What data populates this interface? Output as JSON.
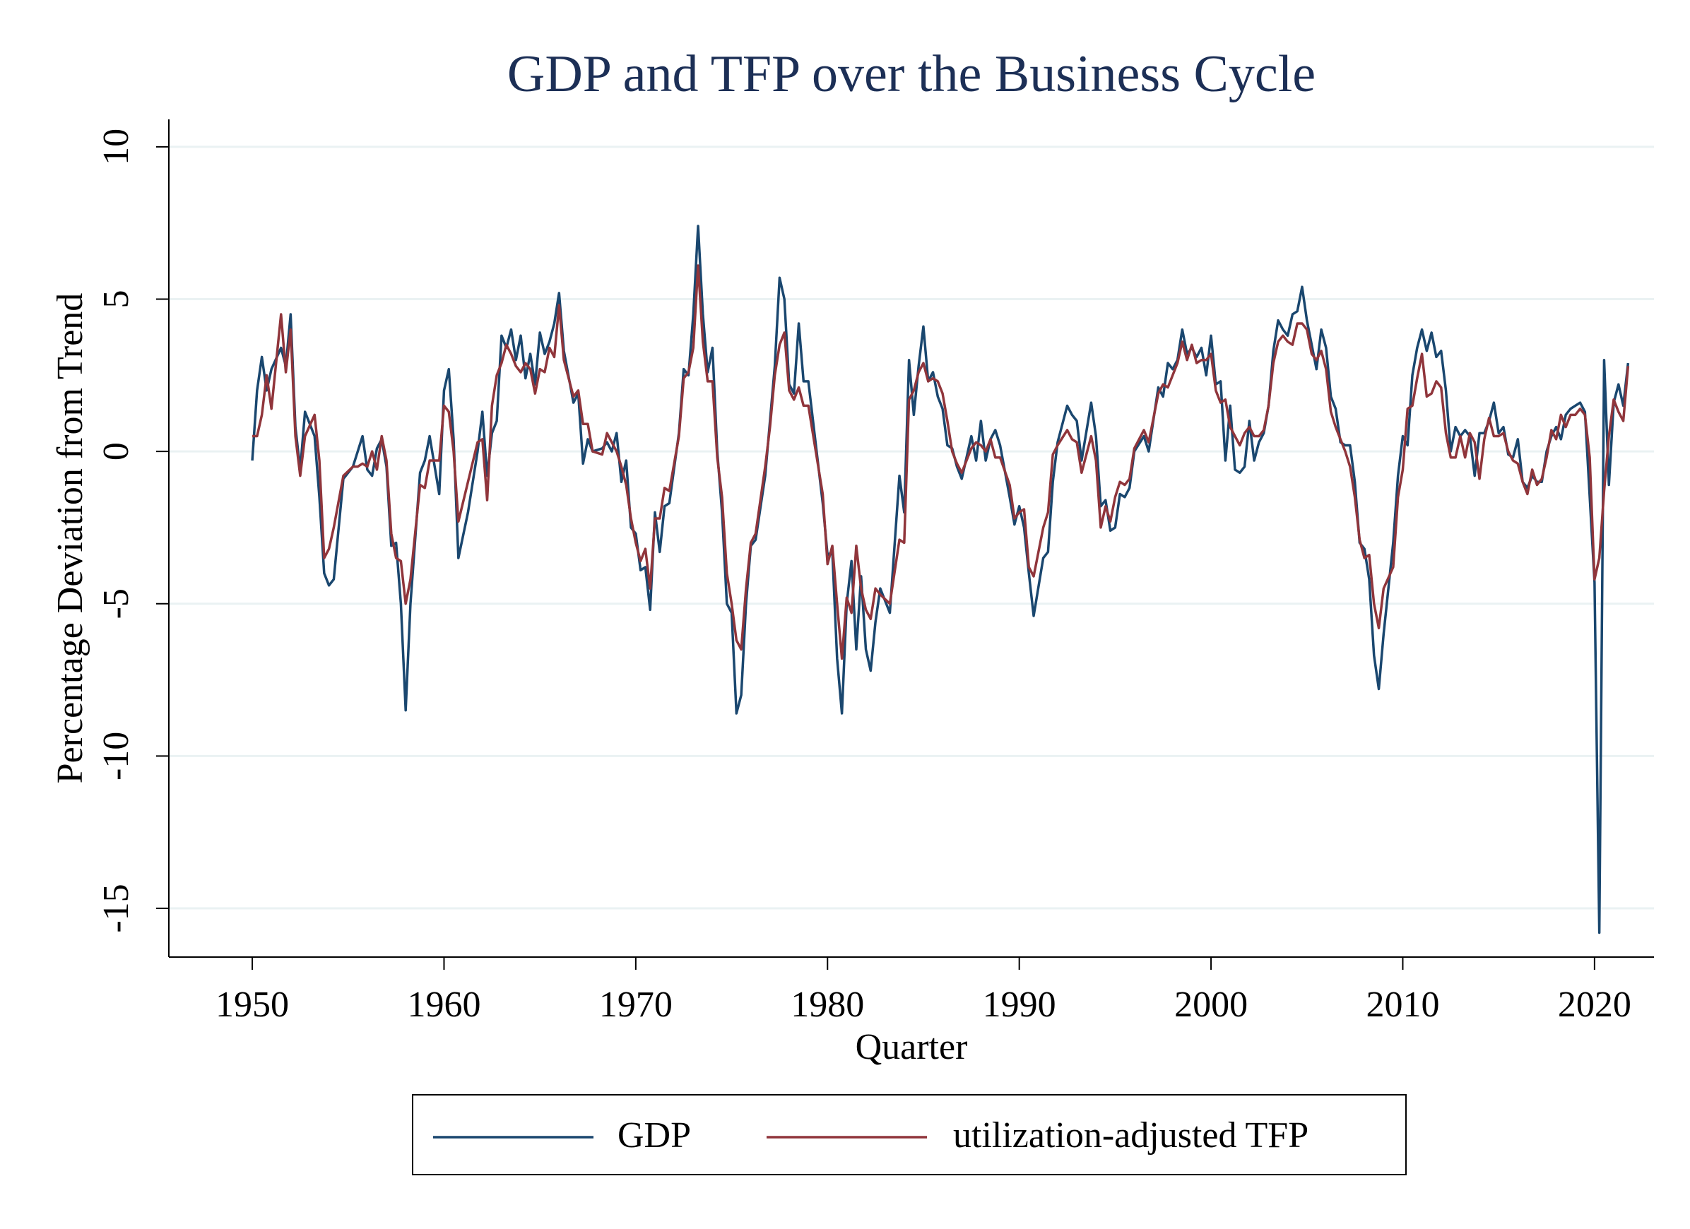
{
  "chart_data": {
    "type": "line",
    "title": "GDP and TFP over the Business Cycle",
    "x_label": "Quarter",
    "y_label": "Percentage Deviation from Trend",
    "xlim": [
      1945.65,
      2023.1
    ],
    "xticks": [
      1950,
      1960,
      1970,
      1980,
      1990,
      2000,
      2010,
      2020
    ],
    "ylim": [
      -16.6,
      10.9
    ],
    "yticks": [
      -15,
      -10,
      -5,
      0,
      5,
      10
    ],
    "grid": true,
    "legend": "bottom",
    "x": [
      1950.0,
      1950.25,
      1950.5,
      1950.75,
      1951.0,
      1951.5,
      1951.75,
      1952.0,
      1952.25,
      1952.5,
      1952.75,
      1953.25,
      1953.5,
      1953.75,
      1954.0,
      1954.25,
      1954.75,
      1955.25,
      1955.5,
      1955.75,
      1956.0,
      1956.25,
      1956.5,
      1956.75,
      1957.0,
      1957.25,
      1957.5,
      1957.75,
      1958.0,
      1958.25,
      1958.75,
      1959.0,
      1959.25,
      1959.75,
      1960.0,
      1960.25,
      1960.5,
      1960.75,
      1961.25,
      1961.75,
      1962.0,
      1962.25,
      1962.5,
      1962.75,
      1963.0,
      1963.25,
      1963.5,
      1963.75,
      1964.0,
      1964.25,
      1964.5,
      1964.75,
      1965.0,
      1965.25,
      1965.5,
      1965.75,
      1966.0,
      1966.25,
      1966.75,
      1967.0,
      1967.25,
      1967.5,
      1967.75,
      1968.25,
      1968.5,
      1968.75,
      1969.0,
      1969.25,
      1969.5,
      1969.75,
      1970.0,
      1970.25,
      1970.5,
      1970.75,
      1971.0,
      1971.25,
      1971.5,
      1971.75,
      1972.25,
      1972.5,
      1972.75,
      1973.0,
      1973.25,
      1973.5,
      1973.75,
      1974.0,
      1974.25,
      1974.5,
      1974.75,
      1975.0,
      1975.25,
      1975.5,
      1975.75,
      1976.0,
      1976.25,
      1976.75,
      1977.0,
      1977.25,
      1977.5,
      1977.75,
      1978.0,
      1978.25,
      1978.5,
      1978.75,
      1979.0,
      1979.75,
      1980.0,
      1980.25,
      1980.5,
      1980.75,
      1981.0,
      1981.25,
      1981.5,
      1981.75,
      1982.0,
      1982.25,
      1982.5,
      1982.75,
      1983.25,
      1983.75,
      1984.0,
      1984.25,
      1984.5,
      1984.75,
      1985.0,
      1985.25,
      1985.5,
      1985.75,
      1986.0,
      1986.25,
      1986.5,
      1986.75,
      1987.0,
      1987.5,
      1987.75,
      1988.0,
      1988.25,
      1988.5,
      1988.75,
      1989.0,
      1989.5,
      1989.75,
      1990.0,
      1990.25,
      1990.5,
      1990.75,
      1991.25,
      1991.5,
      1991.75,
      1992.0,
      1992.5,
      1992.75,
      1993.0,
      1993.25,
      1993.75,
      1994.0,
      1994.25,
      1994.5,
      1994.75,
      1995.0,
      1995.25,
      1995.5,
      1995.75,
      1996.0,
      1996.5,
      1996.75,
      1997.25,
      1997.5,
      1997.75,
      1998.0,
      1998.25,
      1998.5,
      1998.75,
      1999.0,
      1999.25,
      1999.5,
      1999.75,
      2000.0,
      2000.25,
      2000.5,
      2000.75,
      2001.0,
      2001.25,
      2001.5,
      2001.75,
      2002.0,
      2002.25,
      2002.5,
      2002.75,
      2003.0,
      2003.25,
      2003.5,
      2003.75,
      2004.0,
      2004.25,
      2004.5,
      2004.75,
      2005.0,
      2005.25,
      2005.5,
      2005.75,
      2006.0,
      2006.25,
      2006.5,
      2006.75,
      2007.0,
      2007.25,
      2007.5,
      2007.75,
      2008.0,
      2008.25,
      2008.5,
      2008.75,
      2009.0,
      2009.5,
      2009.75,
      2010.0,
      2010.25,
      2010.5,
      2010.75,
      2011.0,
      2011.25,
      2011.5,
      2011.75,
      2012.0,
      2012.25,
      2012.5,
      2012.75,
      2013.0,
      2013.25,
      2013.5,
      2013.75,
      2014.0,
      2014.25,
      2014.5,
      2014.75,
      2015.0,
      2015.25,
      2015.5,
      2015.75,
      2016.0,
      2016.25,
      2016.5,
      2016.75,
      2017.0,
      2017.25,
      2017.5,
      2017.75,
      2018.0,
      2018.25,
      2018.5,
      2018.75,
      2019.0,
      2019.25,
      2019.5,
      2019.75,
      2020.0,
      2020.25,
      2020.5,
      2020.75,
      2021.0,
      2021.25,
      2021.5,
      2021.75
    ],
    "series": [
      {
        "name": "GDP",
        "color": "#1a476f",
        "values": [
          -0.3,
          2.0,
          3.1,
          2.0,
          2.7,
          3.4,
          2.8,
          4.5,
          0.8,
          -0.6,
          1.3,
          0.5,
          -1.5,
          -4.0,
          -4.4,
          -4.2,
          -0.9,
          -0.5,
          0.0,
          0.5,
          -0.6,
          -0.8,
          0.1,
          0.4,
          -0.5,
          -3.1,
          -3.0,
          -5.0,
          -8.5,
          -5.0,
          -0.7,
          -0.3,
          0.5,
          -1.4,
          2.0,
          2.7,
          0.4,
          -3.5,
          -2.0,
          0.0,
          1.3,
          -0.8,
          0.6,
          1.0,
          3.8,
          3.4,
          4.0,
          3.0,
          3.8,
          2.4,
          3.2,
          2.2,
          3.9,
          3.2,
          3.6,
          4.2,
          5.2,
          3.3,
          1.6,
          1.9,
          -0.4,
          0.4,
          0.0,
          0.1,
          0.3,
          0.0,
          0.6,
          -1.0,
          -0.3,
          -2.5,
          -2.7,
          -3.9,
          -3.8,
          -5.2,
          -2.0,
          -3.3,
          -1.8,
          -1.7,
          0.6,
          2.7,
          2.5,
          4.5,
          7.4,
          4.5,
          2.6,
          3.4,
          0.0,
          -2.0,
          -5.0,
          -5.3,
          -8.6,
          -8.0,
          -5.0,
          -3.1,
          -2.9,
          -0.8,
          1.0,
          2.8,
          5.7,
          5.0,
          2.2,
          1.9,
          4.2,
          2.3,
          2.3,
          -1.7,
          -3.4,
          -3.3,
          -6.8,
          -8.6,
          -5.0,
          -3.6,
          -6.5,
          -4.1,
          -6.5,
          -7.2,
          -5.6,
          -4.5,
          -5.3,
          -0.8,
          -2.0,
          3.0,
          1.2,
          2.8,
          4.1,
          2.3,
          2.6,
          1.8,
          1.4,
          0.2,
          0.1,
          -0.5,
          -0.9,
          0.5,
          -0.3,
          1.0,
          -0.3,
          0.4,
          0.7,
          0.2,
          -1.5,
          -2.4,
          -1.8,
          -2.5,
          -4.0,
          -5.4,
          -3.5,
          -3.3,
          -1.0,
          0.3,
          1.5,
          1.2,
          1.0,
          -0.3,
          1.6,
          0.5,
          -1.8,
          -1.6,
          -2.6,
          -2.5,
          -1.4,
          -1.5,
          -1.2,
          0.0,
          0.5,
          0.0,
          2.1,
          1.8,
          2.9,
          2.7,
          3.0,
          4.0,
          3.2,
          3.4,
          3.1,
          3.4,
          2.5,
          3.8,
          2.2,
          2.3,
          -0.3,
          1.5,
          -0.6,
          -0.7,
          -0.5,
          1.0,
          -0.3,
          0.3,
          0.6,
          1.5,
          3.3,
          4.3,
          4.0,
          3.8,
          4.5,
          4.6,
          5.4,
          4.3,
          3.5,
          2.7,
          4.0,
          3.4,
          1.8,
          1.4,
          0.3,
          0.2,
          0.2,
          -1.0,
          -3.0,
          -3.2,
          -4.2,
          -6.7,
          -7.8,
          -6.0,
          -3.0,
          -0.8,
          0.5,
          0.2,
          2.5,
          3.4,
          4.0,
          3.3,
          3.9,
          3.1,
          3.3,
          2.0,
          0.0,
          0.8,
          0.5,
          0.7,
          0.5,
          -0.8,
          0.6,
          0.6,
          1.0,
          1.6,
          0.6,
          0.8,
          -0.1,
          -0.2,
          0.4,
          -1.0,
          -1.2,
          -0.8,
          -1.0,
          -1.0,
          0.0,
          0.5,
          0.8,
          0.4,
          1.2,
          1.4,
          1.5,
          1.6,
          1.3,
          -1.5,
          -4.3,
          -15.8,
          3.0,
          -1.1,
          1.6,
          2.2,
          1.5,
          2.9
        ]
      },
      {
        "name": "utilization-adjusted TFP",
        "color": "#90353b",
        "values": [
          0.5,
          0.5,
          1.2,
          2.5,
          1.4,
          4.5,
          2.6,
          4.0,
          0.5,
          -0.8,
          0.5,
          1.2,
          -0.3,
          -3.5,
          -3.2,
          -2.5,
          -0.8,
          -0.5,
          -0.5,
          -0.4,
          -0.5,
          0.0,
          -0.6,
          0.5,
          -0.3,
          -2.7,
          -3.5,
          -3.6,
          -5.0,
          -4.2,
          -1.1,
          -1.2,
          -0.3,
          -0.3,
          1.5,
          1.3,
          0.0,
          -2.3,
          -1.0,
          0.3,
          0.4,
          -1.6,
          1.5,
          2.5,
          2.9,
          3.5,
          3.2,
          2.8,
          2.6,
          2.9,
          2.7,
          1.9,
          2.7,
          2.6,
          3.4,
          3.1,
          4.8,
          3.0,
          1.8,
          2.0,
          0.9,
          0.9,
          0.0,
          -0.1,
          0.6,
          0.3,
          0.0,
          -0.5,
          -1.1,
          -2.2,
          -3.0,
          -3.6,
          -3.2,
          -4.5,
          -2.2,
          -2.2,
          -1.2,
          -1.3,
          0.5,
          2.4,
          2.6,
          3.4,
          6.1,
          3.6,
          2.3,
          2.3,
          -0.2,
          -1.5,
          -4.0,
          -5.0,
          -6.2,
          -6.5,
          -4.5,
          -3.0,
          -2.7,
          -0.5,
          0.8,
          2.5,
          3.5,
          3.9,
          2.0,
          1.7,
          2.1,
          1.5,
          1.5,
          -1.4,
          -3.7,
          -3.1,
          -5.0,
          -6.8,
          -4.8,
          -5.3,
          -3.1,
          -4.5,
          -5.2,
          -5.5,
          -4.5,
          -4.7,
          -5.0,
          -2.9,
          -3.0,
          1.7,
          2.0,
          2.6,
          2.9,
          2.3,
          2.4,
          2.3,
          1.9,
          1.0,
          0.0,
          -0.4,
          -0.7,
          0.1,
          0.3,
          0.2,
          0.0,
          0.4,
          -0.2,
          -0.2,
          -1.1,
          -2.2,
          -2.0,
          -1.9,
          -3.8,
          -4.1,
          -2.5,
          -2.0,
          -0.1,
          0.2,
          0.7,
          0.4,
          0.3,
          -0.7,
          0.5,
          -0.3,
          -2.5,
          -1.8,
          -2.3,
          -1.5,
          -1.0,
          -1.1,
          -0.9,
          0.1,
          0.7,
          0.3,
          1.9,
          2.2,
          2.1,
          2.5,
          2.9,
          3.6,
          3.0,
          3.5,
          2.9,
          3.0,
          3.0,
          3.2,
          2.0,
          1.6,
          1.7,
          0.8,
          0.5,
          0.2,
          0.6,
          0.8,
          0.5,
          0.5,
          0.7,
          1.5,
          2.9,
          3.6,
          3.8,
          3.6,
          3.5,
          4.2,
          4.2,
          4.0,
          3.2,
          3.0,
          3.3,
          2.7,
          1.3,
          0.8,
          0.4,
          0.0,
          -0.5,
          -1.5,
          -2.9,
          -3.5,
          -3.4,
          -5.0,
          -5.8,
          -4.5,
          -3.8,
          -1.5,
          -0.6,
          1.4,
          1.5,
          2.4,
          3.2,
          1.8,
          1.9,
          2.3,
          2.1,
          0.6,
          -0.2,
          -0.2,
          0.5,
          -0.2,
          0.6,
          0.3,
          -0.9,
          0.4,
          1.1,
          0.5,
          0.5,
          0.6,
          0.0,
          -0.3,
          -0.4,
          -1.0,
          -1.4,
          -0.6,
          -1.1,
          -0.9,
          -0.2,
          0.7,
          0.4,
          1.2,
          0.8,
          1.2,
          1.2,
          1.4,
          1.2,
          -0.2,
          -4.2,
          -3.5,
          -1.3,
          0.5,
          1.7,
          1.3,
          1.0,
          2.8
        ]
      }
    ]
  }
}
